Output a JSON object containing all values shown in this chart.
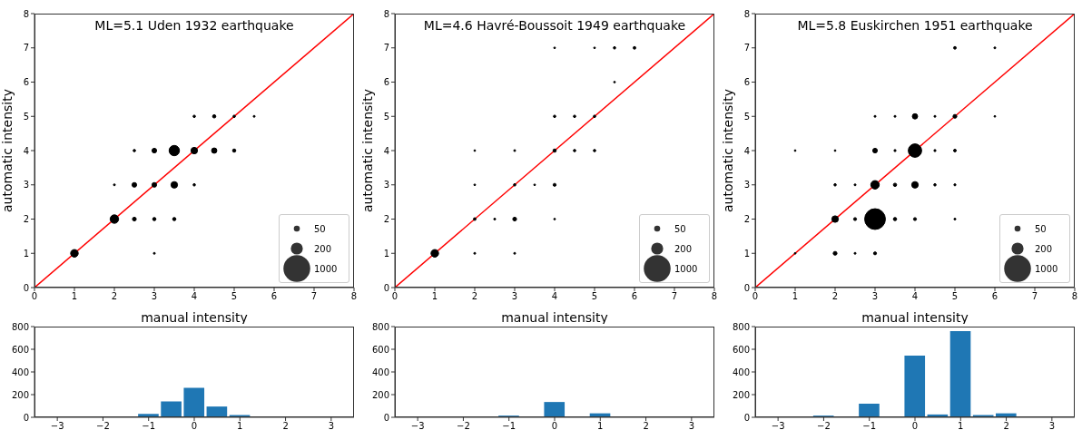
{
  "chart_data": [
    {
      "type": "bubble",
      "title": "ML=5.1 Uden 1932 earthquake",
      "xlabel": "manual intensity",
      "ylabel": "automatic intensity",
      "xlim": [
        0,
        8
      ],
      "ylim": [
        0,
        8
      ],
      "xticks": [
        0,
        1,
        2,
        3,
        4,
        5,
        6,
        7,
        8
      ],
      "yticks": [
        0,
        1,
        2,
        3,
        4,
        5,
        6,
        7,
        8
      ],
      "size_legend": [
        50,
        200,
        1000
      ],
      "series": [
        {
          "color": "#000000",
          "x": [
            4,
            4.5,
            5,
            5.5,
            2.5,
            3,
            3.5,
            4,
            4.5,
            5,
            2,
            2.5,
            3,
            3.5,
            4,
            2,
            2.5,
            3,
            3.5,
            1,
            3
          ],
          "values": [
            5,
            5,
            5,
            5,
            4,
            4,
            4,
            4,
            4,
            4,
            3,
            3,
            3,
            3,
            3,
            2,
            2,
            2,
            2,
            1,
            1
          ],
          "sizes": [
            8,
            15,
            8,
            5,
            8,
            30,
            150,
            60,
            40,
            15,
            5,
            30,
            30,
            60,
            8,
            100,
            20,
            15,
            15,
            80,
            5
          ]
        },
        {
          "type": "line",
          "color": "#ff0000",
          "x": [
            0,
            8
          ],
          "values": [
            0,
            8
          ]
        }
      ]
    },
    {
      "type": "bubble",
      "title": "ML=4.6 Havré-Boussoit 1949 earthquake",
      "xlabel": "manual intensity",
      "ylabel": "automatic intensity",
      "xlim": [
        0,
        8
      ],
      "ylim": [
        0,
        8
      ],
      "xticks": [
        0,
        1,
        2,
        3,
        4,
        5,
        6,
        7,
        8
      ],
      "yticks": [
        0,
        1,
        2,
        3,
        4,
        5,
        6,
        7,
        8
      ],
      "size_legend": [
        50,
        200,
        1000
      ],
      "series": [
        {
          "color": "#000000",
          "x": [
            4,
            5,
            5.5,
            6,
            5.5,
            4,
            4.5,
            5,
            2,
            3,
            4,
            4.5,
            5,
            2,
            3,
            3.5,
            4,
            2,
            2.5,
            3,
            4,
            1,
            2,
            3
          ],
          "values": [
            7,
            7,
            7,
            7,
            6,
            5,
            5,
            5,
            4,
            4,
            4,
            4,
            4,
            3,
            3,
            3,
            3,
            2,
            2,
            2,
            2,
            1,
            1,
            1
          ],
          "sizes": [
            4,
            4,
            8,
            10,
            4,
            8,
            8,
            8,
            4,
            5,
            15,
            8,
            8,
            4,
            8,
            4,
            12,
            10,
            5,
            20,
            4,
            80,
            5,
            5
          ]
        },
        {
          "type": "line",
          "color": "#ff0000",
          "x": [
            0,
            8
          ],
          "values": [
            0,
            8
          ]
        }
      ]
    },
    {
      "type": "bubble",
      "title": "ML=5.8 Euskirchen 1951 earthquake",
      "xlabel": "manual intensity",
      "ylabel": "automatic intensity",
      "xlim": [
        0,
        8
      ],
      "ylim": [
        0,
        8
      ],
      "xticks": [
        0,
        1,
        2,
        3,
        4,
        5,
        6,
        7,
        8
      ],
      "yticks": [
        0,
        1,
        2,
        3,
        4,
        5,
        6,
        7,
        8
      ],
      "size_legend": [
        50,
        200,
        1000
      ],
      "series": [
        {
          "color": "#000000",
          "x": [
            5,
            6,
            3,
            3.5,
            4,
            4.5,
            5,
            6,
            1,
            2,
            3,
            3.5,
            4,
            4.5,
            5,
            2,
            2.5,
            3,
            3.5,
            4,
            4.5,
            5,
            2,
            2.5,
            3,
            3.5,
            4,
            5,
            1,
            2,
            2.5,
            3
          ],
          "values": [
            7,
            7,
            5,
            5,
            5,
            5,
            5,
            5,
            4,
            4,
            4,
            4,
            4,
            4,
            4,
            3,
            3,
            3,
            3,
            3,
            3,
            3,
            2,
            2,
            2,
            2,
            2,
            2,
            1,
            1,
            1,
            1
          ],
          "sizes": [
            10,
            5,
            5,
            5,
            40,
            5,
            20,
            4,
            4,
            4,
            30,
            6,
            250,
            6,
            10,
            8,
            5,
            100,
            15,
            60,
            8,
            6,
            60,
            12,
            600,
            15,
            12,
            5,
            4,
            20,
            5,
            12
          ]
        },
        {
          "type": "line",
          "color": "#ff0000",
          "x": [
            0,
            8
          ],
          "values": [
            0,
            8
          ]
        }
      ]
    },
    {
      "type": "histogram",
      "color": "#1f77b4",
      "bins": [
        -1.25,
        -0.75,
        -0.25,
        0.25,
        0.75,
        1.25,
        1.75
      ],
      "values": [
        30,
        140,
        260,
        95,
        20,
        8
      ],
      "xlim": [
        -3.5,
        3.5
      ],
      "ylim": [
        0,
        800
      ],
      "xticks": [
        {
          "value": -3,
          "label": "−3"
        },
        {
          "value": -2,
          "label": "−2"
        },
        {
          "value": -1,
          "label": "−1"
        },
        0,
        1,
        2,
        3
      ],
      "yticks": [
        0,
        200,
        400,
        600,
        800
      ]
    },
    {
      "type": "histogram",
      "color": "#1f77b4",
      "bins": [
        -1.25,
        -0.75,
        -0.25,
        0.25,
        0.75,
        1.25
      ],
      "values": [
        15,
        8,
        135,
        8,
        35
      ],
      "xlim": [
        -3.5,
        3.5
      ],
      "ylim": [
        0,
        800
      ],
      "xticks": [
        {
          "value": -3,
          "label": "−3"
        },
        {
          "value": -2,
          "label": "−2"
        },
        {
          "value": -1,
          "label": "−1"
        },
        0,
        1,
        2,
        3
      ],
      "yticks": [
        0,
        200,
        400,
        600,
        800
      ]
    },
    {
      "type": "histogram",
      "color": "#1f77b4",
      "bins": [
        -2.25,
        -1.75,
        -1.25,
        -0.75,
        -0.25,
        0.25,
        0.75,
        1.25,
        1.75,
        2.25
      ],
      "values": [
        15,
        0,
        120,
        8,
        545,
        25,
        760,
        20,
        35
      ],
      "xlim": [
        -3.5,
        3.5
      ],
      "ylim": [
        0,
        800
      ],
      "xticks": [
        {
          "value": -3,
          "label": "−3"
        },
        {
          "value": -2,
          "label": "−2"
        },
        {
          "value": -1,
          "label": "−1"
        },
        0,
        1,
        2,
        3
      ],
      "yticks": [
        0,
        200,
        400,
        600,
        800
      ]
    }
  ]
}
